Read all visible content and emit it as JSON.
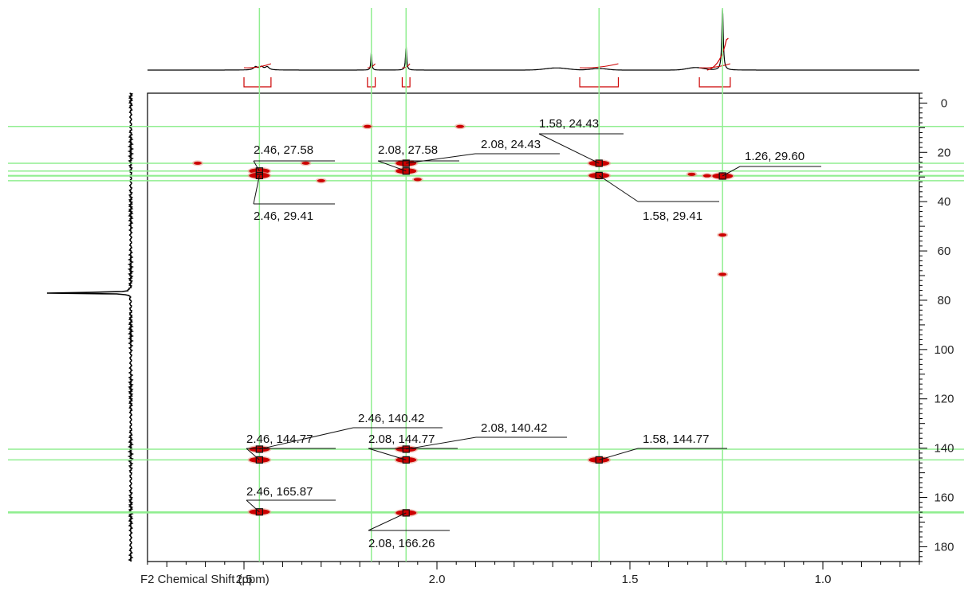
{
  "chart_data": {
    "type": "scatter",
    "subtype": "2D NMR HMBC contour plot",
    "xlabel": "F2 Chemical Shift (ppm)",
    "ylabel": "",
    "x_axis": {
      "reversed": true,
      "range": [
        2.75,
        0.75
      ],
      "ticks": [
        2.5,
        2.0,
        1.5,
        1.0
      ],
      "tick_labels": [
        "2.5",
        "2.0",
        "1.5",
        "1.0"
      ]
    },
    "y_axis": {
      "reversed": true,
      "range": [
        -4,
        186
      ],
      "side": "right",
      "ticks": [
        0,
        20,
        40,
        60,
        80,
        100,
        120,
        140,
        160,
        180
      ],
      "tick_labels": [
        "0",
        "20",
        "40",
        "60",
        "80",
        "100",
        "120",
        "140",
        "160",
        "180"
      ]
    },
    "guide_lines_x": [
      2.46,
      2.17,
      2.08,
      1.58,
      1.26
    ],
    "guide_lines_y": [
      9.5,
      24.43,
      27.58,
      29.41,
      29.6,
      31.5,
      140.42,
      144.77,
      165.87,
      166.26
    ],
    "labeled_peaks": [
      {
        "x": 2.46,
        "y": 27.58,
        "label": "2.46, 27.58"
      },
      {
        "x": 2.46,
        "y": 29.41,
        "label": "2.46, 29.41"
      },
      {
        "x": 2.08,
        "y": 27.58,
        "label": "2.08, 27.58"
      },
      {
        "x": 2.08,
        "y": 24.43,
        "label": "2.08, 24.43"
      },
      {
        "x": 1.58,
        "y": 24.43,
        "label": "1.58, 24.43"
      },
      {
        "x": 1.58,
        "y": 29.41,
        "label": "1.58, 29.41"
      },
      {
        "x": 1.26,
        "y": 29.6,
        "label": "1.26, 29.60"
      },
      {
        "x": 2.46,
        "y": 140.42,
        "label": "2.46, 140.42"
      },
      {
        "x": 2.46,
        "y": 144.77,
        "label": "2.46, 144.77"
      },
      {
        "x": 2.08,
        "y": 144.77,
        "label": "2.08, 144.77"
      },
      {
        "x": 2.08,
        "y": 140.42,
        "label": "2.08, 140.42"
      },
      {
        "x": 1.58,
        "y": 144.77,
        "label": "1.58, 144.77"
      },
      {
        "x": 2.46,
        "y": 165.87,
        "label": "2.46, 165.87"
      },
      {
        "x": 2.08,
        "y": 166.26,
        "label": "2.08, 166.26"
      }
    ],
    "unlabeled_contours": [
      {
        "x": 2.18,
        "y": 9.5
      },
      {
        "x": 1.94,
        "y": 9.5
      },
      {
        "x": 2.62,
        "y": 24.4
      },
      {
        "x": 2.34,
        "y": 24.4
      },
      {
        "x": 2.3,
        "y": 31.5
      },
      {
        "x": 2.05,
        "y": 31.0
      },
      {
        "x": 1.34,
        "y": 28.9
      },
      {
        "x": 1.3,
        "y": 29.5
      },
      {
        "x": 1.26,
        "y": 53.5
      },
      {
        "x": 1.26,
        "y": 69.5
      }
    ],
    "proton_1d": {
      "peaks": [
        {
          "x": 2.46,
          "height": 0.05
        },
        {
          "x": 2.17,
          "height": 0.29
        },
        {
          "x": 2.08,
          "height": 0.38
        },
        {
          "x": 1.69,
          "height": 0.03
        },
        {
          "x": 1.58,
          "height": 0.04
        },
        {
          "x": 1.26,
          "height": 1.0
        }
      ],
      "integrals": [
        {
          "from": 2.5,
          "to": 2.43
        },
        {
          "from": 2.18,
          "to": 2.16
        },
        {
          "from": 2.09,
          "to": 2.07
        },
        {
          "from": 1.63,
          "to": 1.53
        },
        {
          "from": 1.32,
          "to": 1.24
        }
      ]
    },
    "carbon_1d": {
      "peaks": [
        {
          "y": 77.0,
          "height": 1.0
        }
      ]
    },
    "colors": {
      "guide": "#90ee90",
      "contour": "#cc0000",
      "contour_light": "#e8a090",
      "spectrum": "#000000",
      "integral": "#cc0000",
      "frame": "#000000"
    },
    "grid": false
  }
}
